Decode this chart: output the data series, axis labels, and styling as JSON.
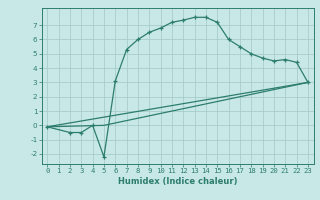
{
  "xlabel": "Humidex (Indice chaleur)",
  "background_color": "#c8e8e8",
  "grid_color": "#a8cccc",
  "line_color": "#2d7d6e",
  "xlim": [
    -0.5,
    23.5
  ],
  "ylim": [
    -2.7,
    8.2
  ],
  "yticks": [
    -2,
    -1,
    0,
    1,
    2,
    3,
    4,
    5,
    6,
    7
  ],
  "xticks": [
    0,
    1,
    2,
    3,
    4,
    5,
    6,
    7,
    8,
    9,
    10,
    11,
    12,
    13,
    14,
    15,
    16,
    17,
    18,
    19,
    20,
    21,
    22,
    23
  ],
  "series1_x": [
    0,
    2,
    3,
    4,
    5,
    6,
    7,
    8,
    9,
    10,
    11,
    12,
    13,
    14,
    15,
    16,
    17,
    18,
    19,
    20,
    21,
    22,
    23
  ],
  "series1_y": [
    -0.1,
    -0.5,
    -0.5,
    0.0,
    -2.2,
    3.1,
    5.3,
    6.0,
    6.5,
    6.8,
    7.2,
    7.35,
    7.55,
    7.55,
    7.2,
    6.0,
    5.5,
    5.0,
    4.7,
    4.5,
    4.6,
    4.4,
    3.0
  ],
  "series2_x": [
    0,
    23
  ],
  "series2_y": [
    -0.1,
    3.0
  ],
  "series3_x": [
    0,
    5,
    23
  ],
  "series3_y": [
    -0.1,
    0.0,
    3.0
  ],
  "xlabel_fontsize": 6.0,
  "tick_fontsize": 5.2
}
